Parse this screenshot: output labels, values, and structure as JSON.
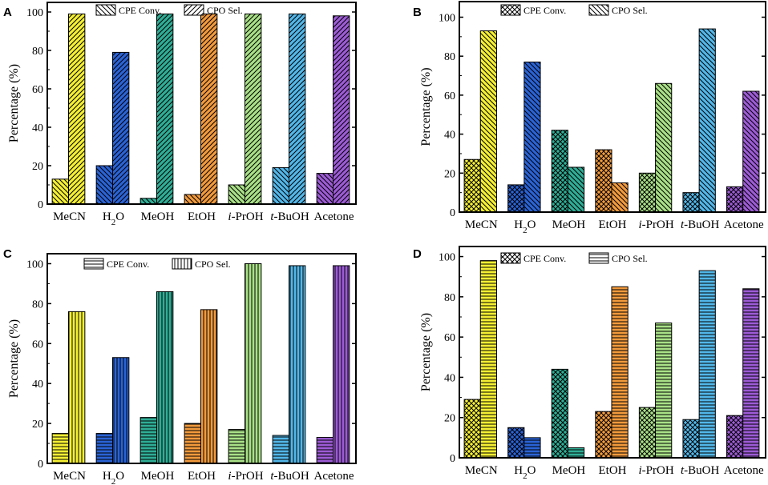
{
  "chart_data": [
    {
      "panel": "A",
      "type": "bar",
      "categories": [
        "MeCN",
        "H2O",
        "MeOH",
        "EtOH",
        "i-PrOH",
        "t-BuOH",
        "Acetone"
      ],
      "ylabel": "Percentage (%)",
      "ylim": [
        0,
        105
      ],
      "yticks": [
        0,
        20,
        40,
        60,
        80,
        100
      ],
      "legend": [
        "CPE Conv.",
        "CPO Sel."
      ],
      "patterns": [
        "backslash",
        "slash"
      ],
      "series": [
        {
          "name": "CPE Conv.",
          "values": [
            13,
            20,
            3,
            5,
            10,
            19,
            16
          ]
        },
        {
          "name": "CPO Sel.",
          "values": [
            99,
            79,
            99,
            99,
            99,
            99,
            98
          ]
        }
      ]
    },
    {
      "panel": "B",
      "type": "bar",
      "categories": [
        "MeCN",
        "H2O",
        "MeOH",
        "EtOH",
        "i-PrOH",
        "t-BuOH",
        "Acetone"
      ],
      "ylabel": "Percentage (%)",
      "ylim": [
        0,
        108
      ],
      "yticks": [
        0,
        20,
        40,
        60,
        80,
        100
      ],
      "legend": [
        "CPE Conv.",
        "CPO Sel."
      ],
      "patterns": [
        "crosshatch",
        "backslash"
      ],
      "series": [
        {
          "name": "CPE Conv.",
          "values": [
            27,
            14,
            42,
            32,
            20,
            10,
            13
          ]
        },
        {
          "name": "CPO Sel.",
          "values": [
            93,
            77,
            23,
            15,
            66,
            94,
            62
          ]
        }
      ]
    },
    {
      "panel": "C",
      "type": "bar",
      "categories": [
        "MeCN",
        "H2O",
        "MeOH",
        "EtOH",
        "i-PrOH",
        "t-BuOH",
        "Acetone"
      ],
      "ylabel": "Percentage (%)",
      "ylim": [
        0,
        105
      ],
      "yticks": [
        0,
        20,
        40,
        60,
        80,
        100
      ],
      "legend": [
        "CPE Conv.",
        "CPO Sel."
      ],
      "patterns": [
        "horizontal",
        "vertical"
      ],
      "series": [
        {
          "name": "CPE Conv.",
          "values": [
            15,
            15,
            23,
            20,
            17,
            14,
            13
          ]
        },
        {
          "name": "CPO Sel.",
          "values": [
            76,
            53,
            86,
            77,
            100,
            99,
            99
          ]
        }
      ]
    },
    {
      "panel": "D",
      "type": "bar",
      "categories": [
        "MeCN",
        "H2O",
        "MeOH",
        "EtOH",
        "i-PrOH",
        "t-BuOH",
        "Acetone"
      ],
      "ylabel": "Percentage (%)",
      "ylim": [
        0,
        105
      ],
      "yticks": [
        0,
        20,
        40,
        60,
        80,
        100
      ],
      "legend": [
        "CPE Conv.",
        "CPO Sel."
      ],
      "patterns": [
        "crosshatch",
        "horizontal"
      ],
      "series": [
        {
          "name": "CPE Conv.",
          "values": [
            29,
            15,
            44,
            23,
            25,
            19,
            21
          ]
        },
        {
          "name": "CPO Sel.",
          "values": [
            98,
            10,
            5,
            85,
            67,
            93,
            84
          ]
        }
      ]
    }
  ],
  "colors": [
    "#f5f033",
    "#2a63d6",
    "#2fae96",
    "#f29a3c",
    "#a9e187",
    "#52b7e9",
    "#9d5bd6"
  ]
}
